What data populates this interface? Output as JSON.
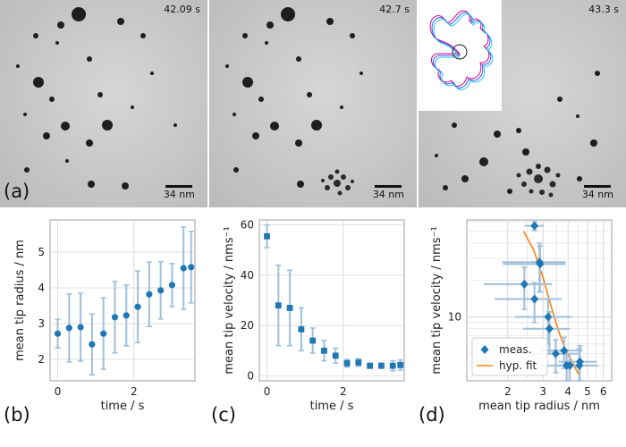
{
  "panel_a": {
    "label": "(a)",
    "frames": [
      {
        "time": "42.09 s",
        "scale": "34 nm"
      },
      {
        "time": "42.7 s",
        "scale": "34 nm"
      },
      {
        "time": "43.3 s",
        "scale": "34 nm"
      }
    ]
  },
  "panel_labels": {
    "b": "(b)",
    "c": "(c)",
    "d": "(d)"
  },
  "chart_data": [
    {
      "id": "b",
      "type": "scatter",
      "xlabel": "time / s",
      "ylabel": "mean tip radius / nm",
      "xlim": [
        -0.2,
        3.6
      ],
      "ylim": [
        1.4,
        5.9
      ],
      "xticks": [
        0,
        2
      ],
      "yticks": [
        2,
        3,
        4,
        5
      ],
      "x": [
        0.0,
        0.3,
        0.6,
        0.9,
        1.2,
        1.5,
        1.8,
        2.1,
        2.4,
        2.7,
        3.0,
        3.3,
        3.5
      ],
      "y": [
        2.72,
        2.88,
        2.9,
        2.42,
        2.72,
        3.18,
        3.23,
        3.47,
        3.82,
        3.93,
        4.08,
        4.55,
        4.58
      ],
      "err": [
        0.4,
        0.95,
        0.95,
        0.85,
        1.0,
        1.0,
        0.85,
        1.0,
        0.9,
        0.8,
        0.6,
        1.15,
        1.0
      ],
      "color": "#1f77b4",
      "errcolor": "#9fbfd9"
    },
    {
      "id": "c",
      "type": "scatter",
      "xlabel": "time / s",
      "ylabel": "mean tip velocity / nms⁻¹",
      "xlim": [
        -0.2,
        3.6
      ],
      "ylim": [
        -2,
        62
      ],
      "xticks": [
        0,
        2
      ],
      "yticks": [
        0,
        20,
        40,
        60
      ],
      "x": [
        0.0,
        0.3,
        0.6,
        0.9,
        1.2,
        1.5,
        1.8,
        2.1,
        2.4,
        2.7,
        3.0,
        3.3,
        3.5
      ],
      "y": [
        55.5,
        28,
        27,
        18.5,
        14,
        10,
        8,
        5,
        5.3,
        4,
        4,
        4,
        4.3
      ],
      "err": [
        4.5,
        16,
        15,
        8.5,
        5,
        4,
        3,
        1.5,
        1.5,
        1,
        1,
        2,
        2
      ],
      "color": "#1f77b4",
      "errcolor": "#9fbfd9"
    },
    {
      "id": "d",
      "type": "scatter",
      "xlabel": "mean tip radius / nm",
      "ylabel": "mean tip velocity / nms⁻¹",
      "xscale": "log",
      "yscale": "log",
      "xlim": [
        1.25,
        6.6
      ],
      "ylim": [
        3.0,
        62
      ],
      "xticks": [
        2,
        3,
        4,
        5,
        6
      ],
      "yticks": [
        10
      ],
      "yticklabels": [
        "10"
      ],
      "x": [
        2.72,
        2.88,
        2.9,
        2.42,
        2.72,
        3.18,
        3.23,
        3.47,
        3.82,
        3.93,
        4.08,
        4.55,
        4.58
      ],
      "y": [
        55.5,
        28,
        27,
        18.5,
        14,
        10,
        8,
        5,
        5.3,
        4,
        4,
        4,
        4.3
      ],
      "xerr": [
        0.3,
        1.0,
        1.0,
        0.9,
        1.0,
        1.0,
        0.85,
        1.0,
        0.9,
        0.8,
        0.6,
        1.1,
        1.0
      ],
      "yerr": [
        4.5,
        12,
        11,
        7,
        5,
        4,
        3,
        1.5,
        1.5,
        1,
        1,
        1.5,
        1.5
      ],
      "fit": {
        "x": [
          2.4,
          2.7,
          3.0,
          3.3,
          3.6,
          3.9,
          4.2,
          4.5
        ],
        "y": [
          50,
          35,
          21,
          12,
          7.5,
          5.3,
          4.3,
          3.4
        ]
      },
      "legend": {
        "meas": "meas.",
        "fit": "hyp. fit",
        "position": "lower-left"
      },
      "color": "#1f77b4",
      "fitcolor": "#ff7f0e",
      "errcolor": "#9fbfd9"
    }
  ]
}
